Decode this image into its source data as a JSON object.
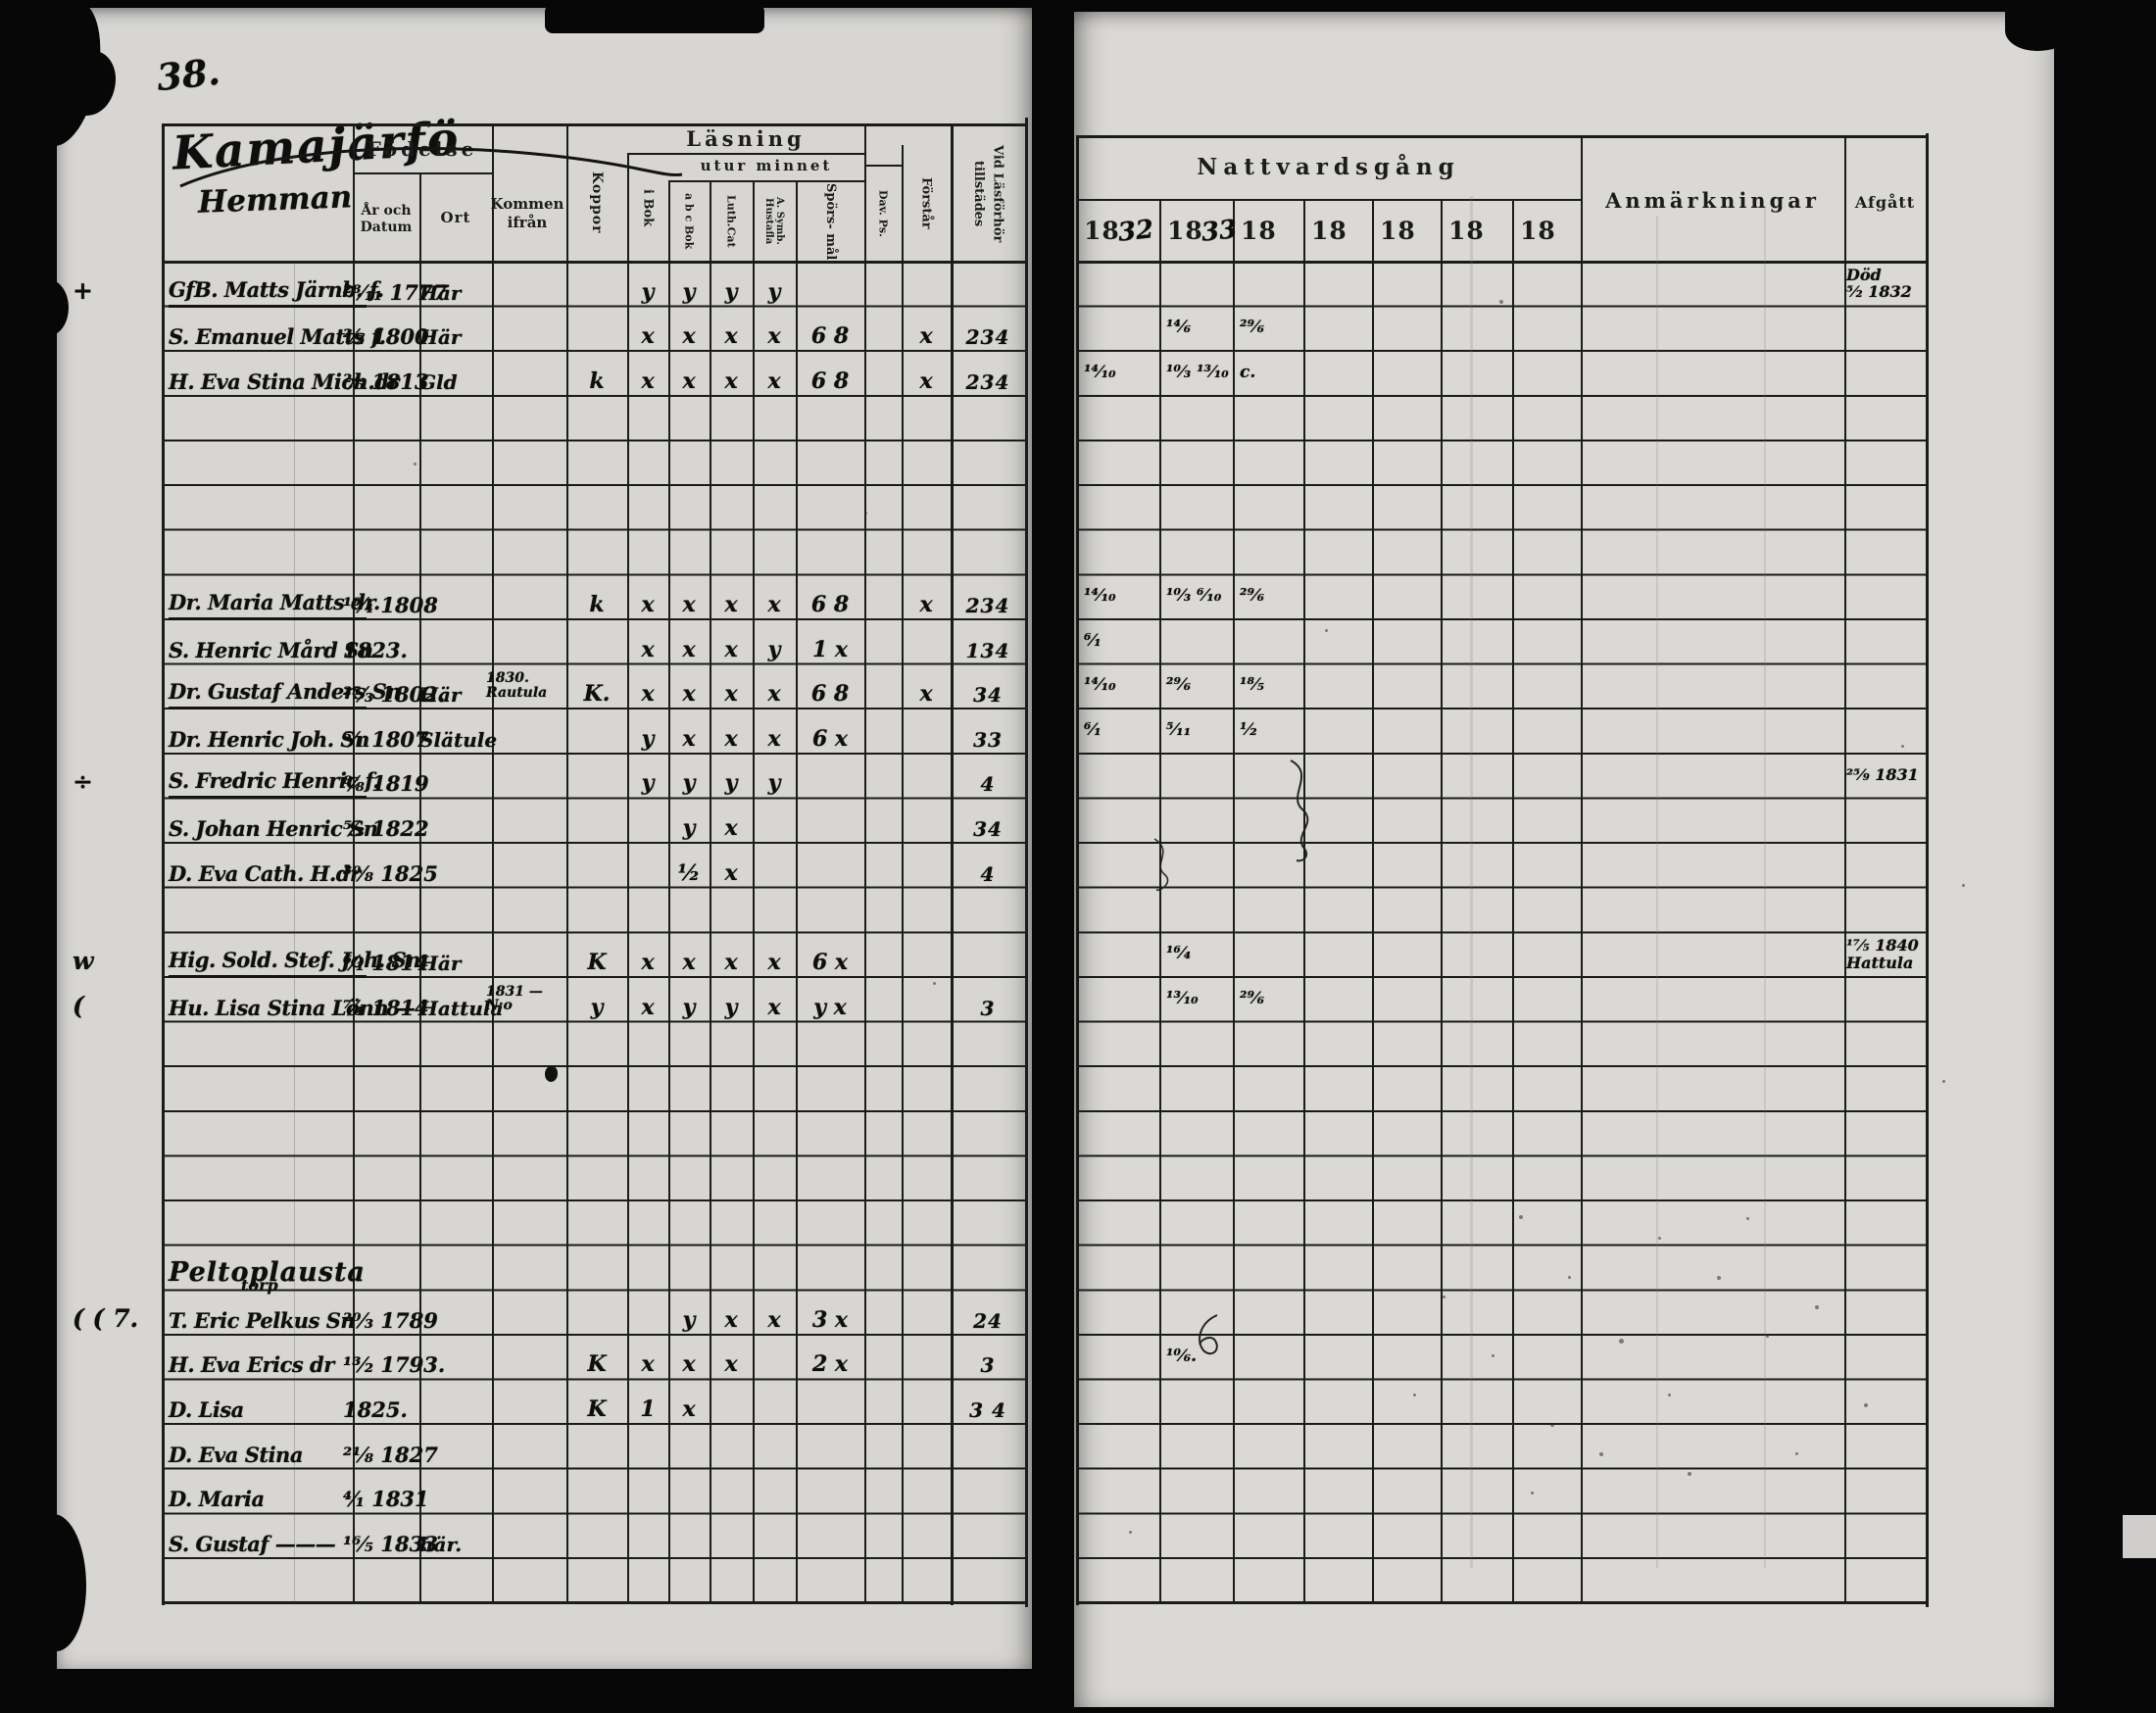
{
  "page_number": "38.",
  "left_page": {
    "title_script": "Kamajärfö",
    "title_script_line2": "Hemman",
    "headers": {
      "fodelse": "Födelse",
      "ar_och_datum": "År och Datum",
      "ort": "Ort",
      "kommen_ifran": "Kommen ifrån",
      "koppor": "Koppor",
      "lasning": "Läsning",
      "utur_minnet": "utur minnet",
      "i_bok": "i Bok",
      "abc_bok": "a b c Bok",
      "luth_cat": "Luth.Cat",
      "a_symb_hustafla": "A. Symb. Hustafla",
      "sporsmal": "Spörs- mål",
      "dav_ps": "Dav. Ps.",
      "forstar": "Förstår",
      "vid_lasforhor": "Vid Läsförhör tillstädes"
    },
    "rows": [
      {
        "row": 0,
        "margin": "+",
        "name": "GfB. Matts Järnb. f.",
        "u": true,
        "date": "²⁸⁄₁₁ 1777",
        "ort": "Här",
        "m0": "y",
        "m1": "y",
        "m2": "y",
        "m3": "y"
      },
      {
        "row": 1,
        "name": "S. Emanuel Matts f.",
        "date": "²⁄₂ 1800",
        "ort": "Här",
        "m0": "x",
        "m1": "x",
        "m2": "x",
        "m3": "x",
        "m4": "6 8",
        "forstar": "x",
        "vid": "234"
      },
      {
        "row": 2,
        "name": "H. Eva Stina Mich.dr",
        "date": "²⁄₅ 1813",
        "ort": "Gld",
        "koppor": "k",
        "m0": "x",
        "m1": "x",
        "m2": "x",
        "m3": "x",
        "m4": "6 8",
        "forstar": "x",
        "vid": "234"
      },
      {
        "row": 7,
        "name": "Dr. Maria Matts dr.",
        "u": true,
        "date": "¹⁶⁄₄ 1808",
        "koppor": "k",
        "m0": "x",
        "m1": "x",
        "m2": "x",
        "m3": "x",
        "m4": "6 8",
        "forstar": "x",
        "vid": "234"
      },
      {
        "row": 8,
        "name": "S. Henric Mård Sn",
        "date": "1823.",
        "m0": "x",
        "m1": "x",
        "m2": "x",
        "m3": "y",
        "m4": "1 x",
        "vid": "134"
      },
      {
        "row": 9,
        "name": "Dr. Gustaf Anders Sn",
        "u": true,
        "date": "²⁵⁄₃ 1802.",
        "ort": "Här",
        "kommen": "1830.\nRautula",
        "koppor": "K.",
        "m0": "x",
        "m1": "x",
        "m2": "x",
        "m3": "x",
        "m4": "6 8",
        "forstar": "x",
        "vid": "34"
      },
      {
        "row": 10,
        "name": "Dr. Henric Joh. Sn",
        "date": "⁵⁄₁ 1807",
        "ort": "Slätule",
        "m0": "y",
        "m1": "x",
        "m2": "x",
        "m3": "x",
        "m4": "6 x",
        "vid": "33"
      },
      {
        "row": 11,
        "margin": "÷",
        "name": "S. Fredric Henric f.",
        "u": true,
        "date": "⁸⁄₈ 1819",
        "m0": "y",
        "m1": "y",
        "m2": "y",
        "m3": "y",
        "vid": "4"
      },
      {
        "row": 12,
        "name": "S. Johan Henric Sn",
        "date": "⁵⁄₃ 1822",
        "m1": "y",
        "m2": "x",
        "vid": "34"
      },
      {
        "row": 13,
        "name": "D. Eva Cath. H.dr",
        "date": "³⁰⁄₈ 1825",
        "m1": "½",
        "m2": "x",
        "vid": "4"
      },
      {
        "row": 15,
        "margin": "w",
        "name": "Hig. Sold. Stef. Joh. Sn",
        "u": true,
        "date": "⁶⁄₁ 1814",
        "ort": "Här",
        "koppor": "K",
        "m0": "x",
        "m1": "x",
        "m2": "x",
        "m3": "x",
        "m4": "6 x"
      },
      {
        "row": 16,
        "margin": "(",
        "name": "Hu. Lisa Stina Lönn —",
        "date": "⁷⁄₁ 1814",
        "ort": "Hattula",
        "kommen": "1831 —\nN:o",
        "koppor": "y",
        "m0": "x",
        "m1": "y",
        "m2": "y",
        "m3": "x",
        "m4": "y x",
        "vid": "3"
      },
      {
        "row": 22,
        "section": true,
        "name": "Peltoplausta",
        "name2": "torp"
      },
      {
        "row": 23,
        "margin": "( ( 7.",
        "name": "T. Eric Pelkus Sn",
        "date": "²⁰⁄₃ 1789",
        "m1": "y",
        "m2": "x",
        "m3": "x",
        "m4": "3 x",
        "vid": "24"
      },
      {
        "row": 24,
        "name": "H. Eva Erics dr",
        "date": "¹³⁄₂ 1793.",
        "koppor": "K",
        "m0": "x",
        "m1": "x",
        "m2": "x",
        "m4": "2 x",
        "vid": "3"
      },
      {
        "row": 25,
        "name": "D. Lisa",
        "date": "1825.",
        "koppor": "K",
        "m0": "1",
        "m1": "x",
        "vid": "3 4"
      },
      {
        "row": 26,
        "name": "D. Eva Stina",
        "date": "²¹⁄₈ 1827"
      },
      {
        "row": 27,
        "name": "D. Maria",
        "date": "⁴⁄₁ 1831"
      },
      {
        "row": 28,
        "name": "S. Gustaf ———",
        "date": "¹⁶⁄₅ 1833",
        "ort": "här."
      }
    ]
  },
  "right_page": {
    "headers": {
      "nattvardsgang": "Nattvardsgång",
      "anmarkningar": "Anmärkningar",
      "afgatt": "Afgått",
      "years": [
        {
          "printed": "18",
          "written": "32"
        },
        {
          "printed": "18",
          "written": "33"
        },
        {
          "printed": "18",
          "written": ""
        },
        {
          "printed": "18",
          "written": ""
        },
        {
          "printed": "18",
          "written": ""
        },
        {
          "printed": "18",
          "written": ""
        },
        {
          "printed": "18",
          "written": ""
        }
      ]
    },
    "entries": [
      {
        "row": 0,
        "afg": "Död\n⁵⁄₂ 1832"
      },
      {
        "row": 1,
        "y33": "¹⁴⁄₆",
        "y34": "²⁹⁄₆"
      },
      {
        "row": 2,
        "y32": "¹⁴⁄₁₀",
        "y33": "¹⁰⁄₃ ¹³⁄₁₀",
        "y34": "c."
      },
      {
        "row": 7,
        "y32": "¹⁴⁄₁₀",
        "y33": "¹⁰⁄₃ ⁶⁄₁₀",
        "y34": "²⁹⁄₆"
      },
      {
        "row": 8,
        "y32": "⁶⁄₁"
      },
      {
        "row": 9,
        "y32": "¹⁴⁄₁₀",
        "y33": "²⁹⁄₆",
        "y34": "¹⁸⁄₅"
      },
      {
        "row": 10,
        "y32": "⁶⁄₁",
        "y33": "⁵⁄₁₁",
        "y34": "¹⁄₂"
      },
      {
        "row": 11,
        "afg": "²⁵⁄₉ 1831"
      },
      {
        "row": 15,
        "y33": "¹⁶⁄₄",
        "afg": "¹⁷⁄₅ 1840\nHattula"
      },
      {
        "row": 16,
        "y33": "¹³⁄₁₀",
        "y34": "²⁹⁄₆"
      },
      {
        "row": 24,
        "y33": "¹⁰⁄₆."
      }
    ]
  }
}
